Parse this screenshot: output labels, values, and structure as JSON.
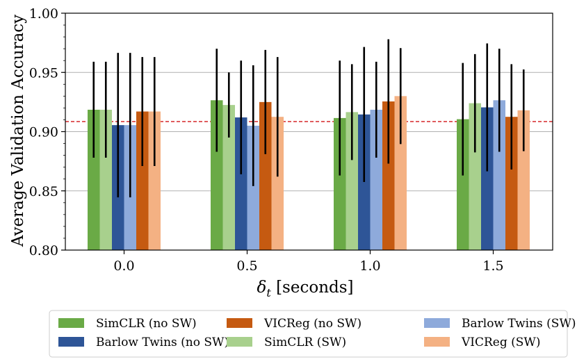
{
  "chart_data": {
    "type": "bar",
    "title": "",
    "xlabel_symbol": "δ",
    "xlabel_subscript": "t",
    "xlabel_suffix": " [seconds]",
    "ylabel": "Average Validation Accuracy",
    "ylim": [
      0.8,
      1.0
    ],
    "yticks": [
      "0.80",
      "0.85",
      "0.90",
      "0.95",
      "1.00"
    ],
    "ytick_values": [
      0.8,
      0.85,
      0.9,
      0.95,
      1.0
    ],
    "grid": "horizontal",
    "categories": [
      "0.0",
      "0.5",
      "1.0",
      "1.5"
    ],
    "reference_line": {
      "value": 0.9085,
      "color": "#d62728",
      "style": "dashed"
    },
    "legend_position": "bottom",
    "series": [
      {
        "name": "SimCLR (no SW)",
        "color": "#6aaa46",
        "values": [
          0.9185,
          0.9265,
          0.9115,
          0.9105
        ],
        "errors": [
          0.0405,
          0.0435,
          0.0485,
          0.0475
        ]
      },
      {
        "name": "SimCLR (SW)",
        "color": "#a8d08d",
        "values": [
          0.9185,
          0.9225,
          0.9165,
          0.924
        ],
        "errors": [
          0.0405,
          0.0275,
          0.0405,
          0.0415
        ]
      },
      {
        "name": "Barlow Twins (no SW)",
        "color": "#2e5597",
        "values": [
          0.9055,
          0.912,
          0.9145,
          0.9205
        ],
        "errors": [
          0.061,
          0.048,
          0.057,
          0.054
        ]
      },
      {
        "name": "Barlow Twins (SW)",
        "color": "#8eaadb",
        "values": [
          0.9055,
          0.905,
          0.9185,
          0.9265
        ],
        "errors": [
          0.061,
          0.051,
          0.0405,
          0.0435
        ]
      },
      {
        "name": "VICReg (no SW)",
        "color": "#c55a11",
        "values": [
          0.917,
          0.925,
          0.9255,
          0.9125
        ],
        "errors": [
          0.046,
          0.044,
          0.0525,
          0.0445
        ]
      },
      {
        "name": "VICReg (SW)",
        "color": "#f4b183",
        "values": [
          0.917,
          0.9125,
          0.93,
          0.918
        ],
        "errors": [
          0.046,
          0.0505,
          0.0405,
          0.0345
        ]
      }
    ],
    "legend_order": [
      0,
      2,
      4,
      1,
      3,
      5
    ]
  }
}
